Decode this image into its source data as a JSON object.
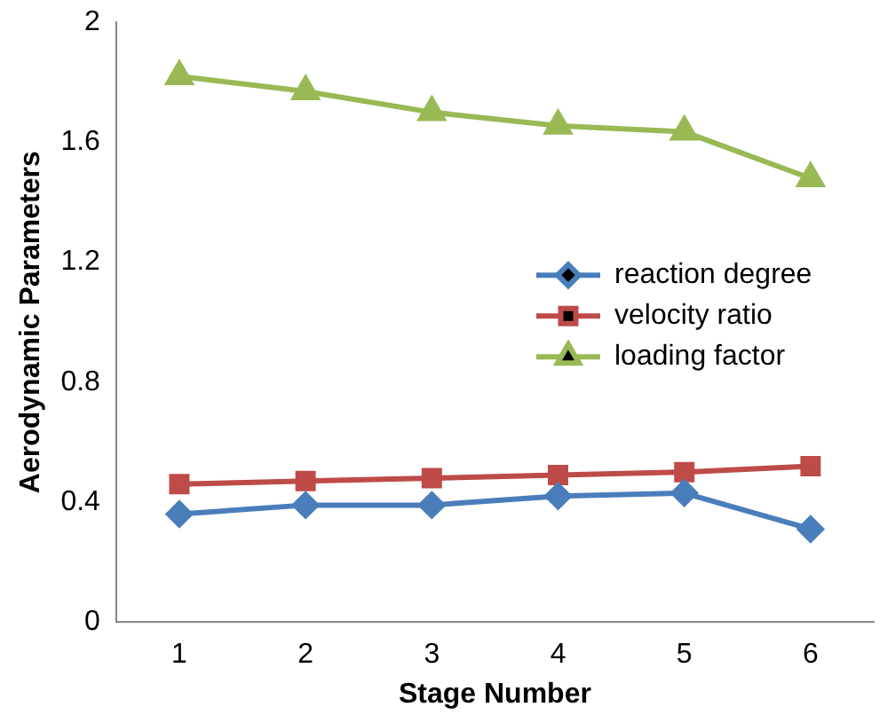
{
  "chart_data": {
    "type": "line",
    "xlabel": "Stage Number",
    "ylabel": "Aerodynamic Parameters",
    "categories": [
      "1",
      "2",
      "3",
      "4",
      "5",
      "6"
    ],
    "ylim": [
      0,
      2
    ],
    "yticks": [
      0,
      0.4,
      0.8,
      1.2,
      1.6,
      2
    ],
    "grid": false,
    "legend": "right",
    "line_style": "solid",
    "series": [
      {
        "name": "reaction degree",
        "color": "#4a7ebb",
        "marker": "diamond",
        "values": [
          0.36,
          0.39,
          0.39,
          0.42,
          0.43,
          0.31
        ]
      },
      {
        "name": "velocity ratio",
        "color": "#be4b48",
        "marker": "square",
        "values": [
          0.46,
          0.47,
          0.48,
          0.49,
          0.5,
          0.52
        ]
      },
      {
        "name": "loading factor",
        "color": "#98b954",
        "marker": "triangle",
        "values": [
          1.82,
          1.77,
          1.7,
          1.655,
          1.635,
          1.48
        ]
      }
    ]
  }
}
